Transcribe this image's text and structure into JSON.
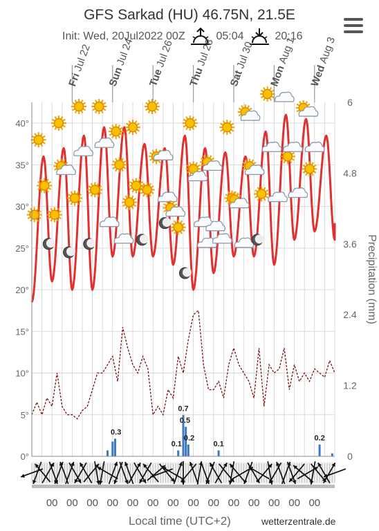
{
  "header": {
    "title": "GFS Sarkad (HU) 46.75N, 21.5E",
    "init": "Init: Wed, 20Jul2022 00Z",
    "sunrise": "05:04",
    "sunset": "20:16"
  },
  "footer": {
    "xlabel": "Local time (UTC+2)",
    "credit": "wetterzentrale.de"
  },
  "colors": {
    "temp_max": "#e03030",
    "dewpoint": "#7a1010",
    "precip": "#3a78c0",
    "grid": "#d9d9d9"
  },
  "chart_data": {
    "type": "line",
    "day_labels": [
      {
        "day": "Fri",
        "date": "Jul 22",
        "x_hour": 48
      },
      {
        "day": "Sun",
        "date": "Jul 24",
        "x_hour": 96
      },
      {
        "day": "Tue",
        "date": "Jul 26",
        "x_hour": 144
      },
      {
        "day": "Thu",
        "date": "Jul 28",
        "x_hour": 192
      },
      {
        "day": "Sat",
        "date": "Jul 30",
        "x_hour": 240
      },
      {
        "day": "Mon",
        "date": "Aug 1",
        "x_hour": 288
      },
      {
        "day": "Wed",
        "date": "Aug 3",
        "x_hour": 336
      }
    ],
    "x_tick_labels": [
      "00",
      "00",
      "00",
      "00",
      "00",
      "00",
      "00",
      "00",
      "00",
      "00",
      "00",
      "00",
      "00",
      "00"
    ],
    "xrange_hours": [
      0,
      360
    ],
    "y_left": {
      "ticks": [
        "0°",
        "5°",
        "10°",
        "15°",
        "20°",
        "25°",
        "30°",
        "35°",
        "40°"
      ],
      "range": [
        0,
        42.5
      ]
    },
    "y_right": {
      "label": "Precipitation (mm)",
      "ticks": [
        "0",
        "1.2",
        "2.4",
        "3.6",
        "4.8",
        "6"
      ],
      "range": [
        0,
        6
      ]
    },
    "temperature": {
      "min_hours": [
        0,
        24,
        48,
        72,
        96,
        120,
        144,
        168,
        192,
        216,
        240,
        264,
        288,
        312,
        336,
        360
      ],
      "min_values": [
        18.5,
        21,
        20,
        20,
        24,
        24,
        24,
        23,
        20,
        22,
        24,
        24,
        23,
        26,
        27,
        26
      ],
      "max_hours": [
        14,
        38,
        62,
        86,
        110,
        134,
        158,
        182,
        206,
        230,
        254,
        278,
        302,
        326,
        350
      ],
      "max_values": [
        36,
        37,
        38.5,
        39.5,
        39.5,
        37.5,
        37,
        38.5,
        37,
        36.5,
        36,
        39,
        41,
        40.5,
        38.5
      ],
      "end_value": 28
    },
    "dewpoint": {
      "hours": [
        0,
        6,
        12,
        18,
        24,
        30,
        36,
        42,
        48,
        54,
        60,
        66,
        72,
        78,
        84,
        90,
        96,
        102,
        108,
        114,
        120,
        126,
        132,
        138,
        144,
        150,
        156,
        162,
        168,
        174,
        180,
        186,
        192,
        198,
        204,
        210,
        216,
        222,
        228,
        234,
        240,
        246,
        252,
        258,
        264,
        270,
        276,
        282,
        288,
        294,
        300,
        306,
        312,
        318,
        324,
        330,
        336,
        342,
        348,
        354,
        360
      ],
      "values": [
        5,
        6.5,
        5,
        7,
        6,
        10,
        6,
        5,
        5,
        4.5,
        5.5,
        6,
        8,
        10,
        10,
        11,
        12,
        9,
        15.5,
        13,
        11,
        10,
        12,
        10.5,
        5,
        6,
        5,
        8,
        7,
        12,
        10,
        14,
        17,
        17.5,
        11,
        8,
        8,
        9,
        7,
        11,
        13,
        11,
        10,
        9,
        7,
        13,
        6,
        11,
        10,
        10.5,
        13,
        8,
        11,
        9,
        10,
        9,
        10.5,
        10,
        9.5,
        11.5,
        10
      ]
    },
    "precipitation": {
      "bars": [
        {
          "hour": 90,
          "value": 0.1
        },
        {
          "hour": 96,
          "value": 0.25
        },
        {
          "hour": 99,
          "value": 0.3
        },
        {
          "hour": 174,
          "value": 0.1
        },
        {
          "hour": 180,
          "value": 0.7
        },
        {
          "hour": 183,
          "value": 0.5
        },
        {
          "hour": 186,
          "value": 0.2
        },
        {
          "hour": 222,
          "value": 0.1
        },
        {
          "hour": 342,
          "value": 0.2
        },
        {
          "hour": 357,
          "value": 0.05
        }
      ],
      "labels": [
        {
          "hour": 100,
          "value": 0.3,
          "text": "0.3"
        },
        {
          "hour": 180,
          "value": 0.7,
          "text": "0.7"
        },
        {
          "hour": 182,
          "value": 0.5,
          "text": "0.5"
        },
        {
          "hour": 172,
          "value": 0.1,
          "text": "0.1"
        },
        {
          "hour": 187,
          "value": 0.2,
          "text": "0.2"
        },
        {
          "hour": 222,
          "value": 0.1,
          "text": "0.1"
        },
        {
          "hour": 342,
          "value": 0.2,
          "text": "0.2"
        }
      ]
    },
    "weather_icons": [
      {
        "hour": 3,
        "temp": 29,
        "icon": "sun-icon"
      },
      {
        "hour": 8,
        "temp": 38,
        "icon": "sun-icon"
      },
      {
        "hour": 15,
        "temp": 32.5,
        "icon": "sun-icon"
      },
      {
        "hour": 20,
        "temp": 25.5,
        "icon": "moon-icon"
      },
      {
        "hour": 27,
        "temp": 29,
        "icon": "sun-icon"
      },
      {
        "hour": 32,
        "temp": 40,
        "icon": "sun-icon"
      },
      {
        "hour": 38,
        "temp": 34.5,
        "icon": "sun-cloud-icon"
      },
      {
        "hour": 44,
        "temp": 24.5,
        "icon": "moon-icon"
      },
      {
        "hour": 51,
        "temp": 31,
        "icon": "sun-icon"
      },
      {
        "hour": 56,
        "temp": 42,
        "icon": "sun-icon"
      },
      {
        "hour": 61,
        "temp": 36.5,
        "icon": "cloud-icon"
      },
      {
        "hour": 68,
        "temp": 25.5,
        "icon": "moon-icon"
      },
      {
        "hour": 75,
        "temp": 32,
        "icon": "sun-icon"
      },
      {
        "hour": 80,
        "temp": 42,
        "icon": "sun-icon"
      },
      {
        "hour": 86,
        "temp": 37.5,
        "icon": "cloud-icon"
      },
      {
        "hour": 92,
        "temp": 28,
        "icon": "cloud-icon"
      },
      {
        "hour": 100,
        "temp": 39,
        "icon": "sun-icon"
      },
      {
        "hour": 104,
        "temp": 35,
        "icon": "sun-icon"
      },
      {
        "hour": 109,
        "temp": 26,
        "icon": "cloud-icon"
      },
      {
        "hour": 116,
        "temp": 30.5,
        "icon": "sun-icon"
      },
      {
        "hour": 120,
        "temp": 39.5,
        "icon": "sun-icon"
      },
      {
        "hour": 124,
        "temp": 32.5,
        "icon": "sun-icon"
      },
      {
        "hour": 131,
        "temp": 26,
        "icon": "moon-icon"
      },
      {
        "hour": 137,
        "temp": 32,
        "icon": "sun-icon"
      },
      {
        "hour": 143,
        "temp": 42,
        "icon": "sun-icon"
      },
      {
        "hour": 148,
        "temp": 36,
        "icon": "sun-icon"
      },
      {
        "hour": 156,
        "temp": 36,
        "icon": "cloud-icon"
      },
      {
        "hour": 158,
        "temp": 28,
        "icon": "moon-icon"
      },
      {
        "hour": 161,
        "temp": 31,
        "icon": "cloud-icon"
      },
      {
        "hour": 168,
        "temp": 29.5,
        "icon": "sun-cloud-icon"
      },
      {
        "hour": 174,
        "temp": 27.5,
        "icon": "sun-icon"
      },
      {
        "hour": 182,
        "temp": 22,
        "icon": "moon-icon"
      },
      {
        "hour": 188,
        "temp": 40,
        "icon": "sun-icon"
      },
      {
        "hour": 192,
        "temp": 34.5,
        "icon": "sun-icon"
      },
      {
        "hour": 197,
        "temp": 33.5,
        "icon": "cloud-icon"
      },
      {
        "hour": 204,
        "temp": 28,
        "icon": "cloud-icon"
      },
      {
        "hour": 208,
        "temp": 25.5,
        "icon": "cloud-icon"
      },
      {
        "hour": 212,
        "temp": 35,
        "icon": "sun-cloud-icon"
      },
      {
        "hour": 218,
        "temp": 27.5,
        "icon": "cloud-icon"
      },
      {
        "hour": 226,
        "temp": 26,
        "icon": "cloud-icon"
      },
      {
        "hour": 232,
        "temp": 39.5,
        "icon": "sun-icon"
      },
      {
        "hour": 238,
        "temp": 31,
        "icon": "sun-icon"
      },
      {
        "hour": 244,
        "temp": 30.5,
        "icon": "sun-cloud-icon"
      },
      {
        "hour": 252,
        "temp": 25.5,
        "icon": "cloud-icon"
      },
      {
        "hour": 257,
        "temp": 41,
        "icon": "sun-cloud-icon"
      },
      {
        "hour": 262,
        "temp": 34.5,
        "icon": "sun-cloud-icon"
      },
      {
        "hour": 268,
        "temp": 26,
        "icon": "moon-icon"
      },
      {
        "hour": 273,
        "temp": 31.5,
        "icon": "sun-icon"
      },
      {
        "hour": 280,
        "temp": 43.5,
        "icon": "sun-icon"
      },
      {
        "hour": 285,
        "temp": 37,
        "icon": "cloud-icon"
      },
      {
        "hour": 292,
        "temp": 31,
        "icon": "cloud-icon"
      },
      {
        "hour": 300,
        "temp": 43,
        "icon": "cloud-icon"
      },
      {
        "hour": 304,
        "temp": 36,
        "icon": "sun-icon"
      },
      {
        "hour": 310,
        "temp": 37,
        "icon": "cloud-icon"
      },
      {
        "hour": 316,
        "temp": 31.5,
        "icon": "cloud-icon"
      },
      {
        "hour": 326,
        "temp": 41.5,
        "icon": "sun-cloud-icon"
      },
      {
        "hour": 330,
        "temp": 34.5,
        "icon": "sun-icon"
      },
      {
        "hour": 336,
        "temp": 37,
        "icon": "cloud-icon"
      }
    ],
    "wind_directions_deg": [
      250,
      200,
      320,
      30,
      160,
      200,
      340,
      20,
      150,
      210,
      330,
      40,
      170,
      190,
      300,
      20,
      200,
      160,
      340,
      30,
      150,
      210,
      320,
      50,
      250,
      140,
      300,
      20,
      180,
      220,
      340,
      10,
      160,
      200,
      330,
      30,
      140,
      190,
      320,
      60,
      200,
      150,
      300,
      40,
      170,
      210,
      340,
      20,
      160,
      220,
      310,
      60,
      190,
      140,
      330,
      30,
      250
    ]
  }
}
